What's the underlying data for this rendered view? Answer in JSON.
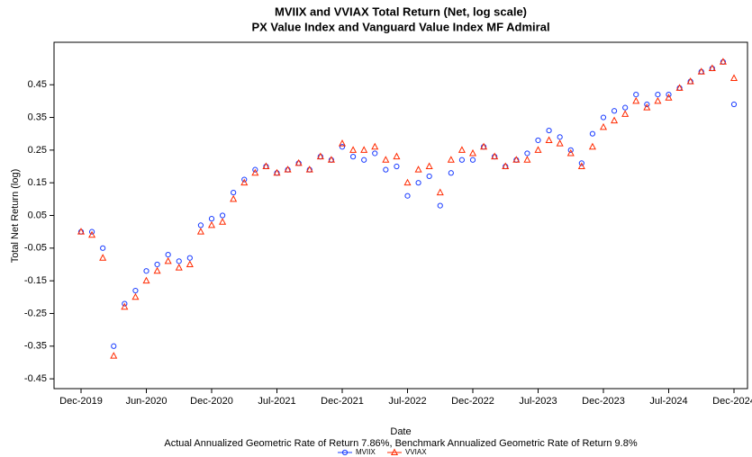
{
  "chart_data": {
    "type": "scatter",
    "title": "MVIIX and VVIAX Total Return (Net, log scale)",
    "subtitle": "PX Value Index and Vanguard Value Index MF Admiral",
    "x_label": "Date",
    "y_label": "Total Net Return (log)",
    "caption": "Actual Annualized Geometric Rate of Return 7.86%, Benchmark Annualized Geometric Rate of Return 9.8%",
    "categories": [
      "Dec-2019",
      null,
      null,
      null,
      null,
      null,
      "Jun-2020",
      null,
      null,
      null,
      null,
      null,
      "Dec-2020",
      null,
      null,
      null,
      null,
      null,
      "Jul-2021",
      null,
      null,
      null,
      null,
      null,
      "Dec-2021",
      null,
      null,
      null,
      null,
      null,
      "Jul-2022",
      null,
      null,
      null,
      null,
      null,
      "Dec-2022",
      null,
      null,
      null,
      null,
      null,
      "Jul-2023",
      null,
      null,
      null,
      null,
      null,
      "Dec-2023",
      null,
      null,
      null,
      null,
      null,
      "Jul-2024",
      null,
      null,
      null,
      null,
      null,
      "Dec-2024"
    ],
    "series": [
      {
        "name": "MVIIX",
        "color": "#1a3cff",
        "marker": "circle",
        "values": [
          0.0,
          0.0,
          -0.05,
          -0.35,
          -0.22,
          -0.18,
          -0.12,
          -0.1,
          -0.07,
          -0.09,
          -0.08,
          0.02,
          0.04,
          0.05,
          0.12,
          0.16,
          0.19,
          0.2,
          0.18,
          0.19,
          0.21,
          0.19,
          0.23,
          0.22,
          0.26,
          0.23,
          0.22,
          0.24,
          0.19,
          0.2,
          0.11,
          0.15,
          0.17,
          0.08,
          0.18,
          0.22,
          0.22,
          0.26,
          0.23,
          0.2,
          0.22,
          0.24,
          0.28,
          0.31,
          0.29,
          0.25,
          0.21,
          0.3,
          0.35,
          0.37,
          0.38,
          0.42,
          0.39,
          0.42,
          0.42,
          0.44,
          0.46,
          0.49,
          0.5,
          0.52,
          0.39
        ]
      },
      {
        "name": "VVIAX",
        "color": "#ff2a00",
        "marker": "triangle",
        "values": [
          0.0,
          -0.01,
          -0.08,
          -0.38,
          -0.23,
          -0.2,
          -0.15,
          -0.12,
          -0.09,
          -0.11,
          -0.1,
          0.0,
          0.02,
          0.03,
          0.1,
          0.15,
          0.18,
          0.2,
          0.18,
          0.19,
          0.21,
          0.19,
          0.23,
          0.22,
          0.27,
          0.25,
          0.25,
          0.26,
          0.22,
          0.23,
          0.15,
          0.19,
          0.2,
          0.12,
          0.22,
          0.25,
          0.24,
          0.26,
          0.23,
          0.2,
          0.22,
          0.22,
          0.25,
          0.28,
          0.27,
          0.24,
          0.2,
          0.26,
          0.32,
          0.34,
          0.36,
          0.4,
          0.38,
          0.4,
          0.41,
          0.44,
          0.46,
          0.49,
          0.5,
          0.52,
          0.47
        ]
      }
    ],
    "ylim": [
      -0.48,
      0.58
    ],
    "yticks": [
      -0.45,
      -0.35,
      -0.25,
      -0.15,
      -0.05,
      0.05,
      0.15,
      0.25,
      0.35,
      0.45
    ],
    "grid": false,
    "legend": "bottom"
  }
}
